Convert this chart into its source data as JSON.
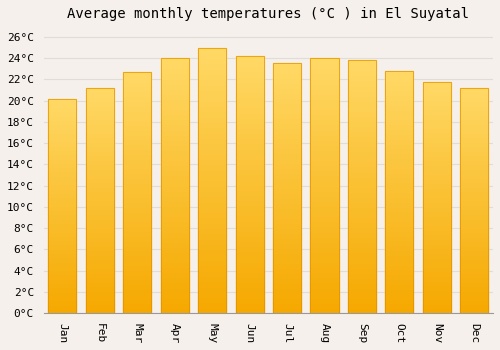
{
  "title": "Average monthly temperatures (°C ) in El Suyatal",
  "months": [
    "Jan",
    "Feb",
    "Mar",
    "Apr",
    "May",
    "Jun",
    "Jul",
    "Aug",
    "Sep",
    "Oct",
    "Nov",
    "Dec"
  ],
  "values": [
    20.2,
    21.2,
    22.7,
    24.0,
    25.0,
    24.2,
    23.5,
    24.0,
    23.8,
    22.8,
    21.8,
    21.2
  ],
  "bar_color_top": "#FFD966",
  "bar_color_bottom": "#F5A800",
  "bar_edge_color": "#E09000",
  "background_color": "#f5f0eb",
  "grid_color": "#e0dcd8",
  "ylim": [
    0,
    27
  ],
  "ytick_step": 2,
  "title_fontsize": 10,
  "tick_fontsize": 8,
  "font_family": "monospace"
}
